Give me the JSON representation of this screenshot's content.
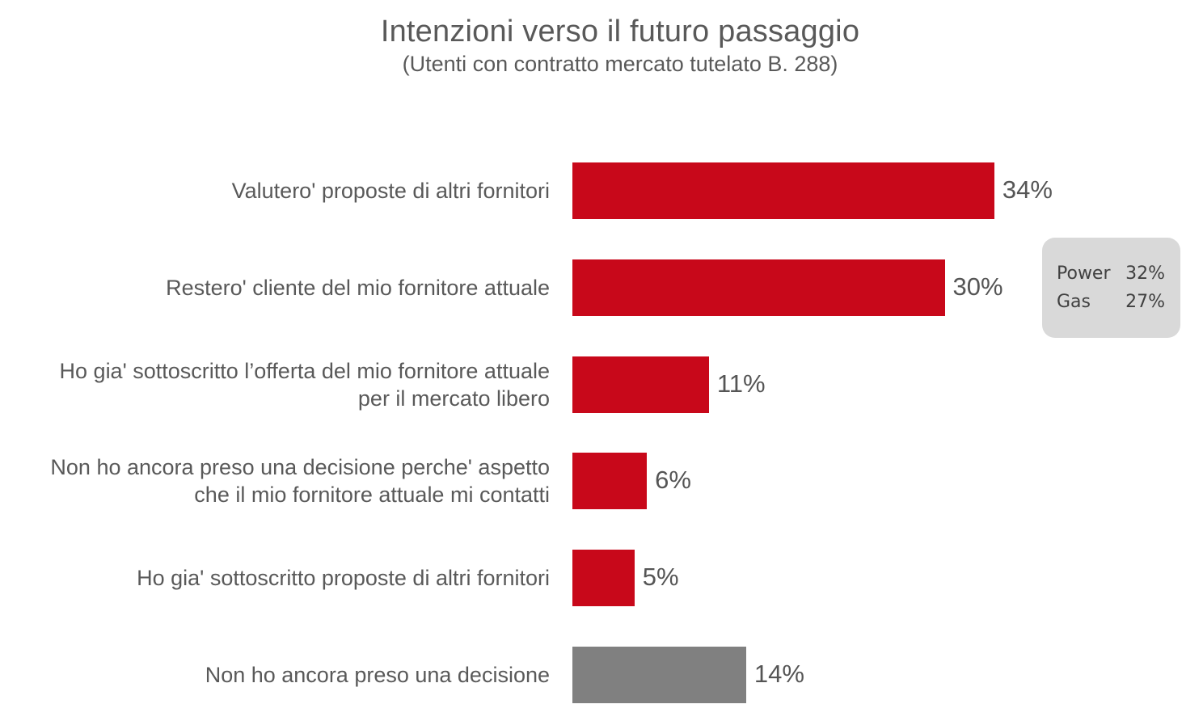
{
  "chart_data": {
    "type": "bar",
    "orientation": "horizontal",
    "title": "Intenzioni verso il futuro passaggio",
    "subtitle": "(Utenti con contratto mercato tutelato B. 288)",
    "categories": [
      [
        "Valutero' proposte di altri fornitori"
      ],
      [
        "Restero' cliente del mio fornitore attuale"
      ],
      [
        "Ho gia' sottoscritto l’offerta del mio fornitore attuale",
        "per il mercato libero"
      ],
      [
        "Non ho ancora preso una decisione perche' aspetto",
        "che il mio fornitore attuale mi contatti"
      ],
      [
        "Ho gia' sottoscritto proposte di altri fornitori"
      ],
      [
        "Non ho ancora preso una decisione"
      ]
    ],
    "values": [
      34,
      30,
      11,
      6,
      5,
      14
    ],
    "value_labels": [
      "34%",
      "30%",
      "11%",
      "6%",
      "5%",
      "14%"
    ],
    "bar_colors": [
      "#c8081a",
      "#c8081a",
      "#c8081a",
      "#c8081a",
      "#c8081a",
      "#808080"
    ],
    "grid": false,
    "annotation": {
      "rows": [
        {
          "name": "Power",
          "value": "32%"
        },
        {
          "name": "Gas",
          "value": "27%"
        }
      ]
    }
  }
}
